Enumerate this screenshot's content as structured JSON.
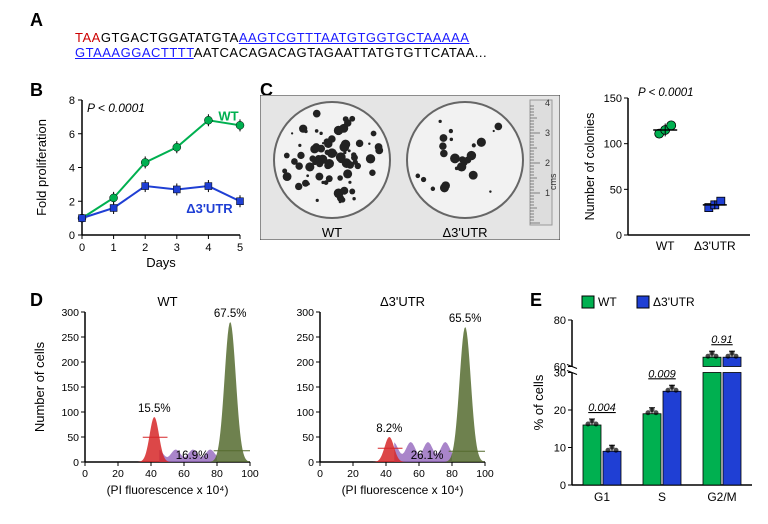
{
  "panelA": {
    "label": "A",
    "line1_taa": "TAA",
    "line1_black1": "GTGACTGGATATGTA",
    "line1_underline": "AAGTCGTTTAATGTGGTGCTAAAAA",
    "line2_underline": "GTAAAGGACTTTT",
    "line2_black": "AATCACAGACAGTAGAATTATGTGTTCATAA..."
  },
  "panelB": {
    "label": "B",
    "pvalue": "P < 0.0001",
    "series1_label": "WT",
    "series2_label": "Δ3'UTR",
    "xlabel": "Days",
    "ylabel": "Fold proliferation",
    "x_ticks": [
      0,
      1,
      2,
      3,
      4,
      5
    ],
    "y_ticks": [
      0,
      2,
      4,
      6,
      8
    ],
    "wt_color": "#00b050",
    "utr_color": "#1f3fd4",
    "wt_data": [
      [
        0,
        1
      ],
      [
        1,
        2.2
      ],
      [
        2,
        4.3
      ],
      [
        3,
        5.2
      ],
      [
        4,
        6.8
      ],
      [
        5,
        6.5
      ]
    ],
    "utr_data": [
      [
        0,
        1
      ],
      [
        1,
        1.6
      ],
      [
        2,
        2.9
      ],
      [
        3,
        2.7
      ],
      [
        4,
        2.9
      ],
      [
        5,
        2.0
      ]
    ]
  },
  "panelC": {
    "label": "C",
    "wt_label": "WT",
    "utr_label": "Δ3'UTR",
    "pvalue": "P < 0.0001",
    "ylabel": "Number of colonies",
    "y_ticks": [
      0,
      50,
      100,
      150
    ],
    "wt_colonies": 115,
    "utr_colonies": 33,
    "wt_color": "#00b050",
    "utr_color": "#1f3fd4",
    "ruler_labels": [
      "1",
      "2",
      "3",
      "4"
    ],
    "ruler_unit": "cms"
  },
  "panelD": {
    "label": "D",
    "wt_title": "WT",
    "utr_title": "Δ3'UTR",
    "xlabel": "(PI fluorescence x 10⁴)",
    "ylabel": "Number of cells",
    "x_ticks": [
      0,
      20,
      40,
      60,
      80,
      100
    ],
    "y_ticks": [
      0,
      50,
      100,
      150,
      200,
      250,
      300
    ],
    "wt_g1_pct": "15.5%",
    "wt_s_pct": "16.9%",
    "wt_g2_pct": "67.5%",
    "utr_g1_pct": "8.2%",
    "utr_s_pct": "26.1%",
    "utr_g2_pct": "65.5%",
    "g1_color": "#d62728",
    "s_color": "#9467bd",
    "g2_color": "#556b2f"
  },
  "panelE": {
    "label": "E",
    "wt_label": "WT",
    "utr_label": "Δ3'UTR",
    "wt_color": "#00b050",
    "utr_color": "#1f3fd4",
    "ylabel": "% of cells",
    "y_ticks_lower": [
      0,
      10,
      20,
      30
    ],
    "y_ticks_upper": [
      60,
      80
    ],
    "categories": [
      "G1",
      "S",
      "G2/M"
    ],
    "pvalues": [
      "0.004",
      "0.009",
      "0.91"
    ],
    "wt_values": [
      16,
      19,
      64
    ],
    "utr_values": [
      9,
      25,
      64
    ]
  }
}
